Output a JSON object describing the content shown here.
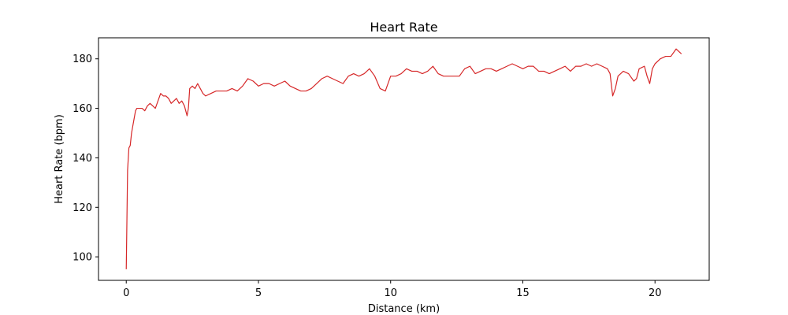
{
  "chart_data": {
    "type": "line",
    "title": "Heart Rate",
    "xlabel": "Distance (km)",
    "ylabel": "Heart Rate (bpm)",
    "xlim": [
      -1.05,
      22.05
    ],
    "ylim": [
      90.5,
      188.5
    ],
    "xticks": [
      0,
      5,
      10,
      15,
      20
    ],
    "yticks": [
      100,
      120,
      140,
      160,
      180
    ],
    "grid": false,
    "legend": "none",
    "series": [
      {
        "color": "#d62728",
        "x": [
          0,
          0.05,
          0.1,
          0.15,
          0.2,
          0.25,
          0.3,
          0.35,
          0.4,
          0.5,
          0.6,
          0.7,
          0.8,
          0.9,
          1.0,
          1.1,
          1.2,
          1.3,
          1.4,
          1.5,
          1.6,
          1.7,
          1.8,
          1.9,
          2.0,
          2.1,
          2.2,
          2.3,
          2.35,
          2.4,
          2.5,
          2.6,
          2.7,
          2.8,
          2.9,
          3.0,
          3.2,
          3.4,
          3.6,
          3.8,
          4.0,
          4.2,
          4.4,
          4.6,
          4.8,
          5.0,
          5.2,
          5.4,
          5.6,
          5.8,
          6.0,
          6.2,
          6.4,
          6.6,
          6.8,
          7.0,
          7.2,
          7.4,
          7.6,
          7.8,
          8.0,
          8.2,
          8.4,
          8.6,
          8.8,
          9.0,
          9.2,
          9.4,
          9.6,
          9.8,
          10.0,
          10.2,
          10.4,
          10.6,
          10.8,
          11.0,
          11.2,
          11.4,
          11.6,
          11.8,
          12.0,
          12.2,
          12.4,
          12.6,
          12.8,
          13.0,
          13.2,
          13.4,
          13.6,
          13.8,
          14.0,
          14.2,
          14.4,
          14.6,
          14.8,
          15.0,
          15.2,
          15.4,
          15.6,
          15.8,
          16.0,
          16.2,
          16.4,
          16.6,
          16.8,
          17.0,
          17.2,
          17.4,
          17.6,
          17.8,
          18.0,
          18.2,
          18.3,
          18.4,
          18.5,
          18.6,
          18.8,
          19.0,
          19.2,
          19.3,
          19.4,
          19.6,
          19.7,
          19.8,
          19.9,
          20.0,
          20.2,
          20.4,
          20.6,
          20.8,
          20.9,
          21.0
        ],
        "values": [
          95,
          135,
          144,
          145,
          150,
          153,
          156,
          159,
          160,
          160,
          160,
          159,
          161,
          162,
          161,
          160,
          163,
          166,
          165,
          165,
          164,
          162,
          163,
          164,
          162,
          163,
          161,
          157,
          160,
          168,
          169,
          168,
          170,
          168,
          166,
          165,
          166,
          167,
          167,
          167,
          168,
          167,
          169,
          172,
          171,
          169,
          170,
          170,
          169,
          170,
          171,
          169,
          168,
          167,
          167,
          168,
          170,
          172,
          173,
          172,
          171,
          170,
          173,
          174,
          173,
          174,
          176,
          173,
          168,
          167,
          173,
          173,
          174,
          176,
          175,
          175,
          174,
          175,
          177,
          174,
          173,
          173,
          173,
          173,
          176,
          177,
          174,
          175,
          176,
          176,
          175,
          176,
          177,
          178,
          177,
          176,
          177,
          177,
          175,
          175,
          174,
          175,
          176,
          177,
          175,
          177,
          177,
          178,
          177,
          178,
          177,
          176,
          174,
          165,
          168,
          173,
          175,
          174,
          171,
          172,
          176,
          177,
          173,
          170,
          176,
          178,
          180,
          181,
          181,
          184,
          183,
          182
        ]
      }
    ]
  }
}
